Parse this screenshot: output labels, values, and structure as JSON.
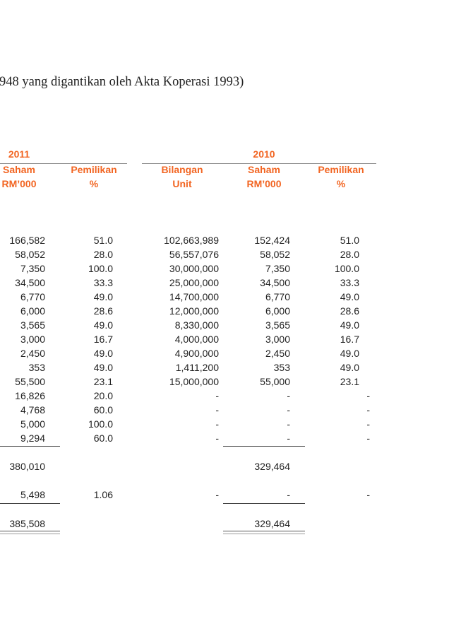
{
  "title": "948 yang digantikan oleh Akta Koperasi 1993)",
  "header": {
    "year_2011": "2011",
    "year_2010": "2010",
    "saham_2011": [
      "Saham",
      "RM’000"
    ],
    "pemilikan_2011": [
      "Pemilikan",
      "%"
    ],
    "bilangan_2010": [
      "Bilangan",
      "Unit"
    ],
    "saham_2010": [
      "Saham",
      "RM’000"
    ],
    "pemilikan_2010": [
      "Pemilikan",
      "%"
    ]
  },
  "accent_color": "#f26522",
  "rows": [
    [
      "166,582",
      "51.0",
      "102,663,989",
      "152,424",
      "51.0"
    ],
    [
      "58,052",
      "28.0",
      "56,557,076",
      "58,052",
      "28.0"
    ],
    [
      "7,350",
      "100.0",
      "30,000,000",
      "7,350",
      "100.0"
    ],
    [
      "34,500",
      "33.3",
      "25,000,000",
      "34,500",
      "33.3"
    ],
    [
      "6,770",
      "49.0",
      "14,700,000",
      "6,770",
      "49.0"
    ],
    [
      "6,000",
      "28.6",
      "12,000,000",
      "6,000",
      "28.6"
    ],
    [
      "3,565",
      "49.0",
      "8,330,000",
      "3,565",
      "49.0"
    ],
    [
      "3,000",
      "16.7",
      "4,000,000",
      "3,000",
      "16.7"
    ],
    [
      "2,450",
      "49.0",
      "4,900,000",
      "2,450",
      "49.0"
    ],
    [
      "353",
      "49.0",
      "1,411,200",
      "353",
      "49.0"
    ],
    [
      "55,500",
      "23.1",
      "15,000,000",
      "55,000",
      "23.1"
    ],
    [
      "16,826",
      "20.0",
      "-",
      "-",
      "-"
    ],
    [
      "4,768",
      "60.0",
      "-",
      "-",
      "-"
    ],
    [
      "5,000",
      "100.0",
      "-",
      "-",
      "-"
    ],
    [
      "9,294",
      "60.0",
      "-",
      "-",
      "-"
    ]
  ],
  "subtotal": [
    "380,010",
    "",
    "",
    "329,464",
    ""
  ],
  "extra_row": [
    "5,498",
    "1.06",
    "-",
    "-",
    "-"
  ],
  "total": [
    "385,508",
    "",
    "",
    "329,464",
    ""
  ]
}
